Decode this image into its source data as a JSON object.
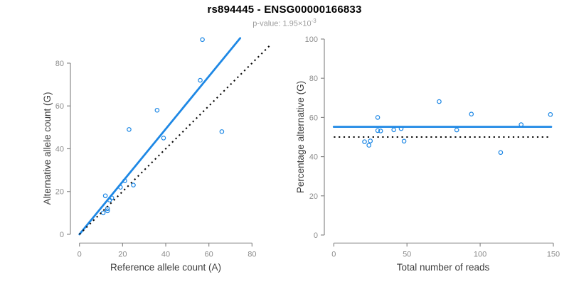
{
  "header": {
    "title": "rs894445 - ENSG00000166833",
    "subtitle_prefix": "p-value: 1.95×10",
    "subtitle_exponent": "-3"
  },
  "colors": {
    "accent_blue": "#1e88e5",
    "axis_gray": "#8a8a8a",
    "tick_label_gray": "#8c8c8c",
    "axis_title_dark": "#3d3d3d",
    "identity_black": "#0a0a0a",
    "subtitle_gray": "#9b9b9b"
  },
  "chart_data": [
    {
      "type": "scatter",
      "name": "allele-count-scatter",
      "xlabel": "Reference allele count (A)",
      "ylabel": "Alternative allele count (G)",
      "xticks": [
        0,
        20,
        40,
        60,
        80
      ],
      "yticks": [
        0,
        20,
        40,
        60,
        80
      ],
      "xlim": [
        0,
        88
      ],
      "ylim": [
        0,
        95
      ],
      "grid": false,
      "points": [
        [
          11,
          10
        ],
        [
          13,
          11
        ],
        [
          13,
          12
        ],
        [
          12,
          18
        ],
        [
          14,
          16
        ],
        [
          15,
          17
        ],
        [
          19,
          22
        ],
        [
          21,
          25
        ],
        [
          25,
          23
        ],
        [
          23,
          49
        ],
        [
          36,
          58
        ],
        [
          39,
          45
        ],
        [
          56,
          72
        ],
        [
          57,
          91
        ],
        [
          66,
          48
        ]
      ],
      "lines": [
        {
          "name": "fit-line",
          "style": "solid",
          "color_key": "accent_blue",
          "from": [
            0,
            0
          ],
          "to": [
            74.5,
            91.7
          ]
        },
        {
          "name": "identity-line",
          "style": "dotted",
          "color_key": "identity_black",
          "from": [
            0,
            0
          ],
          "to": [
            88,
            88
          ]
        }
      ]
    },
    {
      "type": "scatter",
      "name": "percentage-reads-scatter",
      "xlabel": "Total number of reads",
      "ylabel": "Percentage alternative (G)",
      "xticks": [
        0,
        50,
        100,
        150
      ],
      "yticks": [
        0,
        20,
        40,
        60,
        80,
        100
      ],
      "xlim": [
        0,
        153
      ],
      "ylim": [
        0,
        104
      ],
      "grid": false,
      "points": [
        [
          21,
          47.6
        ],
        [
          24,
          45.8
        ],
        [
          25,
          48.0
        ],
        [
          30,
          60.0
        ],
        [
          30,
          53.3
        ],
        [
          32,
          53.1
        ],
        [
          41,
          53.7
        ],
        [
          46,
          54.3
        ],
        [
          48,
          47.9
        ],
        [
          72,
          68.1
        ],
        [
          84,
          53.6
        ],
        [
          94,
          61.7
        ],
        [
          114,
          42.1
        ],
        [
          128,
          56.3
        ],
        [
          148,
          61.5
        ]
      ],
      "lines": [
        {
          "name": "mean-percentage-line",
          "style": "solid",
          "color_key": "accent_blue",
          "from": [
            0,
            55.2
          ],
          "to": [
            148.5,
            55.2
          ]
        },
        {
          "name": "fifty-percent-line",
          "style": "dotted",
          "color_key": "identity_black",
          "from": [
            0,
            50
          ],
          "to": [
            148.5,
            50
          ]
        }
      ]
    }
  ]
}
